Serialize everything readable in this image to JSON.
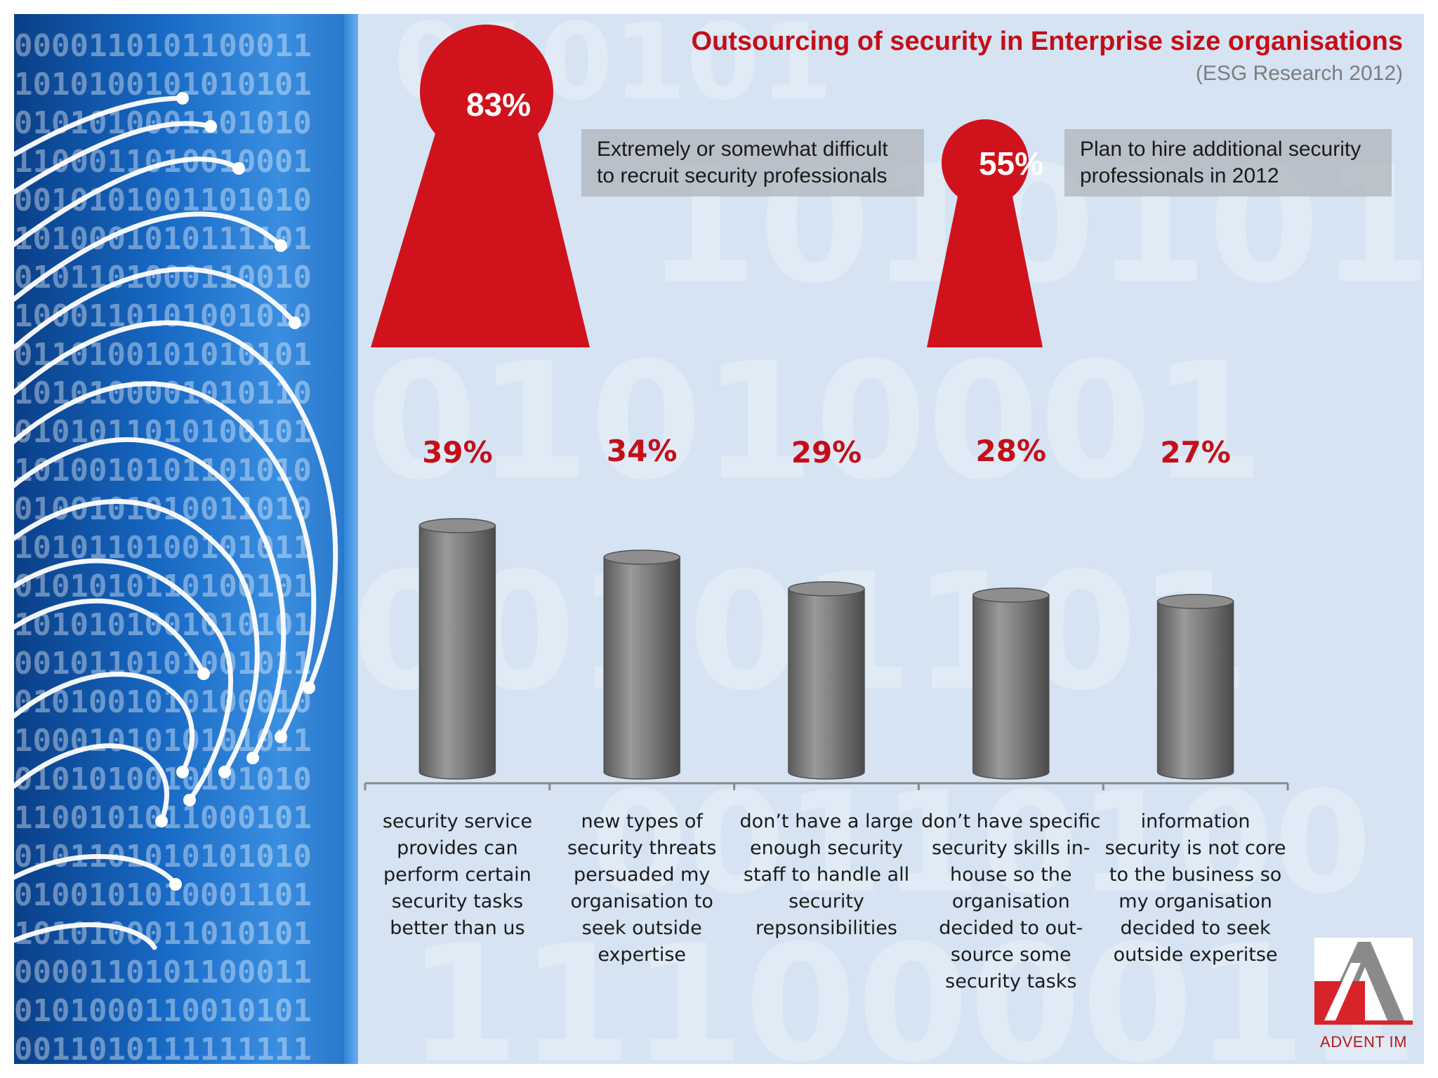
{
  "title": "Outsourcing of security in Enterprise size organisations",
  "subtitle": "(ESG Research 2012)",
  "callouts": [
    {
      "value": "83%",
      "text": "Extremely or somewhat difficult\nto recruit security professionals"
    },
    {
      "value": "55%",
      "text": "Plan to hire additional security\nprofessionals in 2012"
    }
  ],
  "chart_data": {
    "type": "bar",
    "categories": [
      "security service provides can perform certain security tasks better than us",
      "new types of security threats persuaded my organisation to seek outside expertise",
      "don’t have a large enough security staff to handle all security repsonsibilities",
      "don’t have specific security skills in-house so the organisation decided to out-source some security tasks",
      "information security is not core to the business so my organisation decided to seek outside experitse"
    ],
    "category_lines": [
      "security service\nprovides can\nperform certain\nsecurity tasks\nbetter than us",
      "new types of\nsecurity threats\npersuaded my\norganisation to\nseek outside\nexpertise",
      "don’t have a large\nenough security\nstaff to handle all\nsecurity\nrepsonsibilities",
      "don’t have specific\nsecurity skills in-\nhouse so the\norganisation\ndecided to out-\nsource some\nsecurity tasks",
      "information\nsecurity is not core\nto the business so\nmy organisation\ndecided to seek\noutside experitse"
    ],
    "values": [
      39,
      34,
      29,
      28,
      27
    ],
    "value_labels": [
      "39%",
      "34%",
      "29%",
      "28%",
      "27%"
    ],
    "ylim": [
      0,
      40
    ],
    "bar_color": "#7a7a7a"
  },
  "colors": {
    "accent": "#c40e18",
    "background": "#d5e3f3",
    "panel": "#1769c4"
  },
  "logo": {
    "text": "ADVENT IM"
  }
}
